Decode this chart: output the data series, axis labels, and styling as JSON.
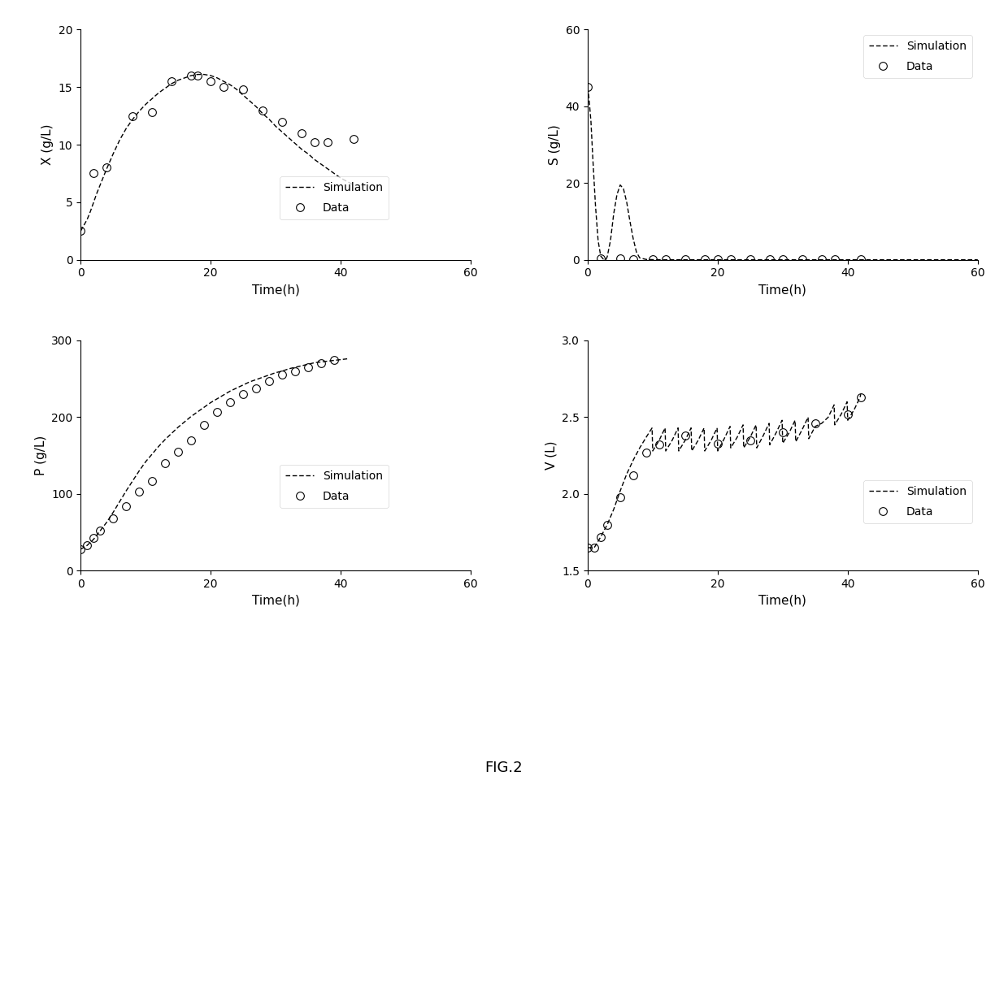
{
  "fig_label": "FIG.2",
  "subplot_X": {
    "ylabel": "X (g/L)",
    "xlabel": "Time(h)",
    "xlim": [
      0,
      60
    ],
    "ylim": [
      0,
      20
    ],
    "yticks": [
      0,
      5,
      10,
      15,
      20
    ],
    "xticks": [
      0,
      20,
      40,
      60
    ],
    "sim_t": [
      0,
      0.5,
      1,
      1.5,
      2,
      2.5,
      3,
      3.5,
      4,
      5,
      6,
      7,
      8,
      9,
      10,
      11,
      12,
      13,
      14,
      15,
      16,
      17,
      18,
      19,
      20,
      21,
      22,
      23,
      24,
      25,
      26,
      27,
      28,
      29,
      30,
      31,
      32,
      33,
      34,
      35,
      36,
      37,
      38,
      39,
      40,
      41,
      42
    ],
    "sim_x": [
      2.5,
      3.0,
      3.5,
      4.2,
      5.0,
      5.8,
      6.5,
      7.2,
      7.9,
      9.2,
      10.4,
      11.4,
      12.2,
      12.9,
      13.5,
      14.0,
      14.5,
      14.9,
      15.3,
      15.6,
      15.8,
      16.0,
      16.1,
      16.1,
      16.0,
      15.8,
      15.5,
      15.2,
      14.8,
      14.3,
      13.8,
      13.3,
      12.7,
      12.2,
      11.6,
      11.1,
      10.6,
      10.1,
      9.6,
      9.2,
      8.7,
      8.3,
      7.9,
      7.5,
      7.1,
      6.8,
      6.5
    ],
    "data_t": [
      0,
      2,
      4,
      8,
      11,
      14,
      17,
      18,
      20,
      22,
      25,
      28,
      31,
      34,
      36,
      38,
      42
    ],
    "data_x": [
      2.5,
      7.5,
      8.0,
      12.5,
      12.8,
      15.5,
      16.0,
      16.0,
      15.5,
      15.0,
      14.8,
      13.0,
      12.0,
      11.0,
      10.2,
      10.2,
      10.5
    ]
  },
  "subplot_S": {
    "ylabel": "S (g/L)",
    "xlabel": "Time(h)",
    "xlim": [
      0,
      60
    ],
    "ylim": [
      0,
      60
    ],
    "yticks": [
      0,
      20,
      40,
      60
    ],
    "xticks": [
      0,
      20,
      40,
      60
    ],
    "sim_t": [
      0,
      0.2,
      0.5,
      0.8,
      1.2,
      1.6,
      2.0,
      2.4,
      2.8,
      3.0,
      3.5,
      4.0,
      4.5,
      5.0,
      5.5,
      6.0,
      6.5,
      7.0,
      7.5,
      8.0,
      9.0,
      10.0,
      12.0,
      15.0,
      20.0,
      25.0,
      30.0,
      35.0,
      40.0,
      45.0,
      50.0,
      55.0,
      60.0
    ],
    "sim_s": [
      45.0,
      42.0,
      36.0,
      26.0,
      14.0,
      5.0,
      1.0,
      0.2,
      0.05,
      0.8,
      5.0,
      12.0,
      17.0,
      19.5,
      18.5,
      15.0,
      10.0,
      5.5,
      2.0,
      0.5,
      0.1,
      0.05,
      0.02,
      0.01,
      0.01,
      0.01,
      0.01,
      0.01,
      0.01,
      0.01,
      0.01,
      0.01,
      0.01
    ],
    "data_t": [
      0,
      2,
      5,
      7,
      10,
      12,
      15,
      18,
      20,
      22,
      25,
      28,
      30,
      33,
      36,
      38,
      42
    ],
    "data_s": [
      45.0,
      0.3,
      0.3,
      0.2,
      0.2,
      0.2,
      0.2,
      0.2,
      0.2,
      0.2,
      0.2,
      0.2,
      0.2,
      0.2,
      0.2,
      0.2,
      0.2
    ]
  },
  "subplot_P": {
    "ylabel": "P (g/L)",
    "xlabel": "Time(h)",
    "xlim": [
      0,
      60
    ],
    "ylim": [
      0,
      300
    ],
    "yticks": [
      0,
      100,
      200,
      300
    ],
    "xticks": [
      0,
      20,
      40,
      60
    ],
    "sim_t": [
      0,
      1,
      2,
      3,
      4,
      5,
      6,
      7,
      8,
      9,
      10,
      11,
      12,
      13,
      14,
      15,
      16,
      17,
      18,
      19,
      20,
      21,
      22,
      23,
      24,
      25,
      26,
      27,
      28,
      29,
      30,
      31,
      32,
      33,
      34,
      35,
      36,
      37,
      38,
      39,
      40,
      41
    ],
    "sim_p": [
      28,
      33,
      41,
      52,
      63,
      76,
      90,
      104,
      117,
      130,
      142,
      152,
      162,
      171,
      179,
      187,
      194,
      201,
      207,
      213,
      219,
      224,
      229,
      234,
      238,
      242,
      246,
      249,
      252,
      255,
      258,
      260,
      263,
      265,
      267,
      269,
      271,
      272,
      273,
      274,
      275,
      276
    ],
    "data_t": [
      0,
      1,
      2,
      3,
      5,
      7,
      9,
      11,
      13,
      15,
      17,
      19,
      21,
      23,
      25,
      27,
      29,
      31,
      33,
      35,
      37,
      39
    ],
    "data_p": [
      28,
      33,
      43,
      52,
      68,
      84,
      103,
      117,
      140,
      155,
      170,
      190,
      207,
      220,
      230,
      238,
      247,
      255,
      260,
      265,
      270,
      275
    ]
  },
  "subplot_V": {
    "ylabel": "V (L)",
    "xlabel": "Time(h)",
    "xlim": [
      0,
      60
    ],
    "ylim": [
      1.5,
      3.0
    ],
    "yticks": [
      1.5,
      2.0,
      2.5,
      3.0
    ],
    "xticks": [
      0,
      20,
      40,
      60
    ],
    "sim_t": [
      0,
      1,
      2,
      3,
      4,
      5,
      6,
      7,
      8,
      9,
      9.9,
      10,
      11,
      11.9,
      12,
      13,
      13.9,
      14,
      15,
      15.9,
      16,
      17,
      17.9,
      18,
      19,
      19.9,
      20,
      21,
      21.9,
      22,
      23,
      23.9,
      24,
      25,
      25.9,
      26,
      27,
      27.9,
      28,
      29,
      29.9,
      30,
      31,
      31.9,
      32,
      33,
      33.9,
      34,
      35,
      36,
      37,
      37.9,
      38,
      39,
      39.9,
      40,
      41,
      41.9,
      42
    ],
    "sim_v": [
      1.65,
      1.65,
      1.72,
      1.8,
      1.9,
      2.02,
      2.13,
      2.22,
      2.3,
      2.37,
      2.43,
      2.28,
      2.35,
      2.43,
      2.28,
      2.35,
      2.43,
      2.28,
      2.35,
      2.43,
      2.28,
      2.35,
      2.43,
      2.28,
      2.35,
      2.43,
      2.28,
      2.36,
      2.44,
      2.3,
      2.37,
      2.45,
      2.3,
      2.37,
      2.45,
      2.3,
      2.38,
      2.46,
      2.32,
      2.4,
      2.48,
      2.33,
      2.4,
      2.48,
      2.34,
      2.42,
      2.5,
      2.36,
      2.44,
      2.46,
      2.5,
      2.58,
      2.45,
      2.52,
      2.6,
      2.48,
      2.55,
      2.63,
      2.65
    ],
    "data_t": [
      0,
      1,
      2,
      3,
      5,
      7,
      9,
      11,
      15,
      20,
      25,
      30,
      35,
      40,
      42
    ],
    "data_v": [
      1.65,
      1.65,
      1.72,
      1.8,
      1.98,
      2.12,
      2.27,
      2.32,
      2.38,
      2.33,
      2.35,
      2.4,
      2.46,
      2.52,
      2.63
    ]
  }
}
